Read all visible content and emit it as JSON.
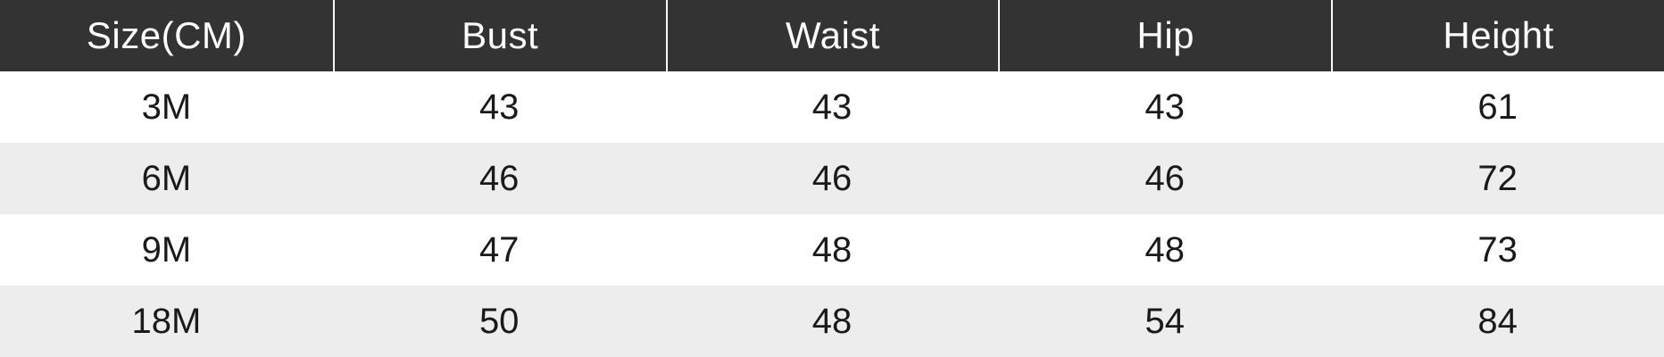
{
  "chart_data": {
    "type": "table",
    "columns": [
      "Size(CM)",
      "Bust",
      "Waist",
      "Hip",
      "Height"
    ],
    "rows": [
      [
        "3M",
        "43",
        "43",
        "43",
        "61"
      ],
      [
        "6M",
        "46",
        "46",
        "46",
        "72"
      ],
      [
        "9M",
        "47",
        "48",
        "48",
        "73"
      ],
      [
        "18M",
        "50",
        "48",
        "54",
        "84"
      ]
    ],
    "layout": {
      "header_background": "#333333",
      "header_text_color": "#ffffff",
      "header_separator_color": "#f7f7f7",
      "row_alt_background": "#ededed",
      "row_background": "#ffffff",
      "body_text_color": "#1a1a1a",
      "alignment": "center"
    }
  }
}
